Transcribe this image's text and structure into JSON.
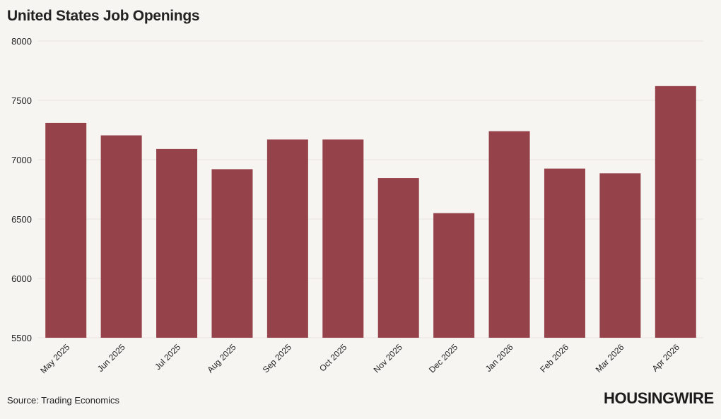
{
  "title": "United States Job Openings",
  "source": "Source: Trading Economics",
  "brand": "HOUSINGWIRE",
  "colors": {
    "bar": "#95424b",
    "background": "#f7f5f1",
    "grid": "#e8e5e0",
    "text": "#222222"
  },
  "chart_data": {
    "type": "bar",
    "title": "United States Job Openings",
    "xlabel": "",
    "ylabel": "",
    "categories": [
      "May 2025",
      "Jun 2025",
      "Jul 2025",
      "Aug 2025",
      "Sep 2025",
      "Oct 2025",
      "Nov 2025",
      "Dec 2025",
      "Jan 2026",
      "Feb 2026",
      "Mar 2026",
      "Apr 2026"
    ],
    "values": [
      7310,
      7205,
      7090,
      6920,
      7170,
      7170,
      6845,
      6550,
      7240,
      6925,
      6885,
      7620
    ],
    "ylim": [
      5500,
      8000
    ],
    "yticks": [
      5500,
      6000,
      6500,
      7000,
      7500,
      8000
    ],
    "grid": true,
    "legend": "none"
  }
}
